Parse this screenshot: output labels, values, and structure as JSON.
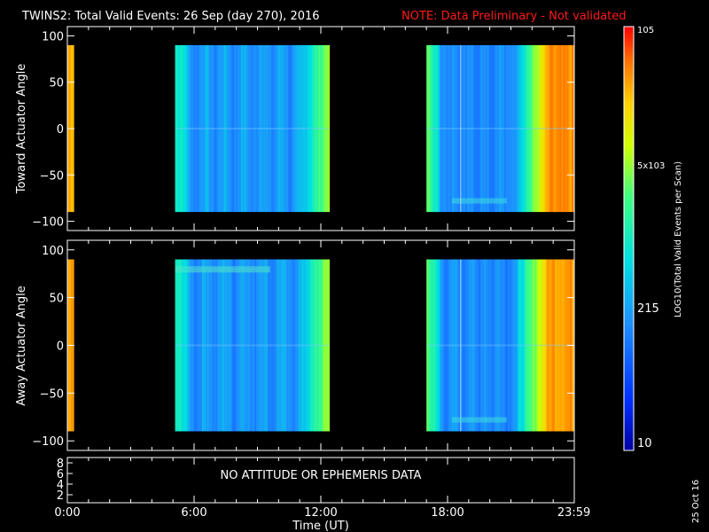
{
  "header": {
    "title": "TWINS2: Total Valid Events: 26 Sep (day 270), 2016",
    "note": "NOTE: Data Preliminary - Not validated"
  },
  "chart_data": {
    "type": "heatmap",
    "panels": [
      {
        "id": "toward",
        "ylabel": "Toward Actuator Angle",
        "ylim": [
          -110,
          110
        ],
        "yticks": [
          "100",
          "50",
          "0",
          "−50",
          "−100"
        ],
        "angle_range": [
          -90,
          90
        ]
      },
      {
        "id": "away",
        "ylabel": "Away Actuator Angle",
        "ylim": [
          -110,
          110
        ],
        "yticks": [
          "100",
          "50",
          "0",
          "−50",
          "−100"
        ],
        "angle_range": [
          -90,
          90
        ]
      }
    ],
    "data_segments_hours": [
      [
        0.0,
        0.3
      ],
      [
        5.1,
        12.4
      ],
      [
        17.0,
        24.0
      ]
    ],
    "xlim_hours": [
      0,
      24
    ],
    "xticks": [
      "0:00",
      "6:00",
      "12:00",
      "18:00",
      "23:59"
    ],
    "xlabel": "Time (UT)",
    "colorbar": {
      "label": "LOG10(Total Valid Events per Scan)",
      "ticks": [
        "10",
        "215",
        "5x103",
        "105"
      ],
      "range": [
        10,
        100000
      ],
      "scale": "log"
    },
    "ephemeris_panel": {
      "yticks": [
        "8",
        "6",
        "4",
        "2"
      ],
      "message": "NO ATTITUDE OR EPHEMERIS DATA"
    },
    "date_stamp": "25 Oct 16",
    "colors": {
      "title": "#ffffff",
      "note": "#ff1a1a",
      "background": "#000000"
    }
  }
}
